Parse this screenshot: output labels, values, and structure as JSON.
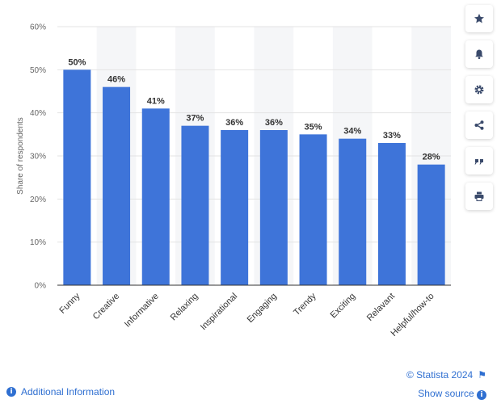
{
  "chart_data": {
    "type": "bar",
    "ylabel": "Share of respondents",
    "xlabel": "",
    "ylim": [
      0,
      60
    ],
    "yticks": [
      "0%",
      "10%",
      "20%",
      "30%",
      "40%",
      "50%",
      "60%"
    ],
    "categories": [
      "Funny",
      "Creative",
      "Informative",
      "Relaxing",
      "Inspirational",
      "Engaging",
      "Trendy",
      "Exciting",
      "Relavant",
      "Helpful/how-to"
    ],
    "values": [
      50,
      46,
      41,
      37,
      36,
      36,
      35,
      34,
      33,
      28
    ],
    "value_labels": [
      "50%",
      "46%",
      "41%",
      "37%",
      "36%",
      "36%",
      "35%",
      "34%",
      "33%",
      "28%"
    ],
    "bar_color": "#3e74d9",
    "grid": true,
    "alternating_band_color": "#f5f6f8"
  },
  "sidebar": {
    "buttons": [
      {
        "name": "star-icon"
      },
      {
        "name": "bell-icon"
      },
      {
        "name": "gear-icon"
      },
      {
        "name": "share-icon"
      },
      {
        "name": "quote-icon"
      },
      {
        "name": "print-icon"
      }
    ]
  },
  "footer": {
    "credit": "© Statista 2024",
    "show_source": "Show source",
    "additional_info": "Additional Information",
    "info_icon_glyph": "i"
  }
}
